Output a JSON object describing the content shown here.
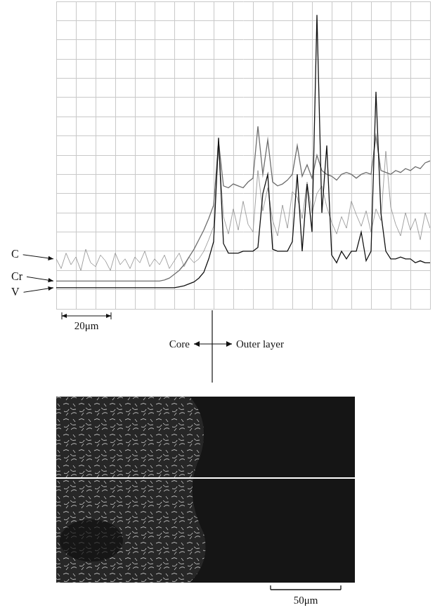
{
  "chart_data": {
    "type": "line",
    "x": [
      0,
      2,
      4,
      6,
      8,
      10,
      12,
      14,
      16,
      18,
      20,
      22,
      24,
      26,
      28,
      30,
      32,
      34,
      36,
      38,
      40,
      42,
      44,
      46,
      48,
      50,
      52,
      54,
      56,
      58,
      60,
      62,
      64,
      66,
      68,
      70,
      72,
      74,
      76,
      78,
      80,
      82,
      84,
      86,
      88,
      90,
      92,
      94,
      96,
      98,
      100,
      102,
      104,
      106,
      108,
      110,
      112,
      114,
      116,
      118,
      120,
      122,
      124,
      126,
      128,
      130,
      132,
      134,
      136,
      138,
      140,
      142,
      144,
      146,
      148,
      150,
      152
    ],
    "series": [
      {
        "name": "C",
        "color": "#8a8a8a",
        "values": [
          2.6,
          2.1,
          2.9,
          2.3,
          2.7,
          2.0,
          3.1,
          2.4,
          2.2,
          2.8,
          2.5,
          2.0,
          2.9,
          2.3,
          2.6,
          2.1,
          2.7,
          2.4,
          3.0,
          2.2,
          2.6,
          2.3,
          2.8,
          2.1,
          2.5,
          2.9,
          2.2,
          2.7,
          2.4,
          2.6,
          3.0,
          3.6,
          4.3,
          8.5,
          4.8,
          3.9,
          5.2,
          4.1,
          5.6,
          4.4,
          4.0,
          7.2,
          5.1,
          6.3,
          4.6,
          3.8,
          5.4,
          4.2,
          6.1,
          5.8,
          4.7,
          6.6,
          5.0,
          6.0,
          6.4,
          5.3,
          4.5,
          3.9,
          4.8,
          4.2,
          5.6,
          4.9,
          4.3,
          5.1,
          4.0,
          5.2,
          4.6,
          8.2,
          5.3,
          4.4,
          3.8,
          5.0,
          4.1,
          4.7,
          3.6,
          5.0,
          4.2
        ]
      },
      {
        "name": "Cr",
        "color": "#6e6e6e",
        "values": [
          1.45,
          1.45,
          1.45,
          1.45,
          1.45,
          1.45,
          1.45,
          1.45,
          1.45,
          1.45,
          1.45,
          1.45,
          1.45,
          1.45,
          1.45,
          1.45,
          1.45,
          1.45,
          1.45,
          1.45,
          1.45,
          1.45,
          1.5,
          1.6,
          1.8,
          2.0,
          2.3,
          2.7,
          3.1,
          3.6,
          4.1,
          4.7,
          5.4,
          8.7,
          6.4,
          6.3,
          6.5,
          6.4,
          6.3,
          6.6,
          6.8,
          9.5,
          7.0,
          8.8,
          6.6,
          6.4,
          6.5,
          6.7,
          7.0,
          8.5,
          6.9,
          7.5,
          6.8,
          8.0,
          7.2,
          7.0,
          6.9,
          6.7,
          7.0,
          7.1,
          7.0,
          6.8,
          7.0,
          7.1,
          7.0,
          9.0,
          7.2,
          7.1,
          7.0,
          7.2,
          7.1,
          7.3,
          7.2,
          7.4,
          7.3,
          7.6,
          7.7
        ]
      },
      {
        "name": "V",
        "color": "#111111",
        "values": [
          1.1,
          1.1,
          1.1,
          1.1,
          1.1,
          1.1,
          1.1,
          1.1,
          1.1,
          1.1,
          1.1,
          1.1,
          1.1,
          1.1,
          1.1,
          1.1,
          1.1,
          1.1,
          1.1,
          1.1,
          1.1,
          1.1,
          1.1,
          1.1,
          1.1,
          1.15,
          1.2,
          1.3,
          1.4,
          1.6,
          1.9,
          2.6,
          3.5,
          8.9,
          3.4,
          2.9,
          2.9,
          2.9,
          3.0,
          3.0,
          3.0,
          3.2,
          6.0,
          7.0,
          3.1,
          3.0,
          3.0,
          3.0,
          3.5,
          7.0,
          3.0,
          6.5,
          4.0,
          15.3,
          5.0,
          8.5,
          2.8,
          2.4,
          3.0,
          2.6,
          3.0,
          3.0,
          4.0,
          2.5,
          3.0,
          11.3,
          5.0,
          3.0,
          2.6,
          2.6,
          2.7,
          2.6,
          2.6,
          2.4,
          2.5,
          2.4,
          2.4
        ]
      }
    ],
    "xlim": [
      0,
      152
    ],
    "xticks": [
      0,
      8,
      16,
      24,
      32,
      40,
      48,
      56,
      64,
      72,
      80,
      88,
      96,
      104,
      112,
      120,
      128,
      136,
      144,
      152
    ],
    "ylim": [
      0,
      16
    ],
    "yticks": [
      0,
      1,
      2,
      3,
      4,
      5,
      6,
      7,
      8,
      9,
      10,
      11,
      12,
      13,
      14,
      15,
      16
    ],
    "grid": true,
    "tick_labels": false,
    "scale_bar": {
      "value": 20,
      "label": "20μm"
    },
    "annotations": [
      "Core",
      "Outer layer"
    ]
  },
  "micrograph": {
    "scale_bar": {
      "value": 50,
      "label": "50μm"
    }
  }
}
